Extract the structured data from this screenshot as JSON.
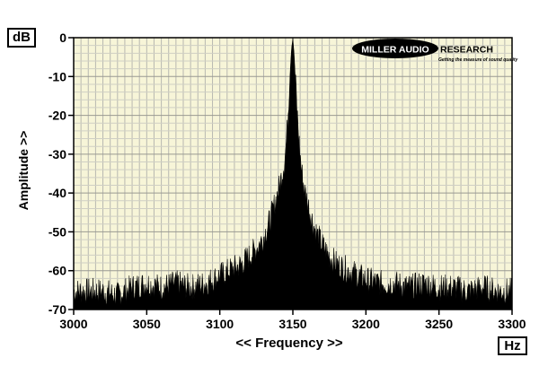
{
  "chart_data": {
    "type": "area",
    "xlabel": "<< Frequency >>",
    "ylabel": "Amplitude >>",
    "y_unit": "dB",
    "x_unit": "Hz",
    "xlim": [
      3000,
      3300
    ],
    "ylim": [
      -70,
      0
    ],
    "x_ticks": [
      3000,
      3050,
      3100,
      3150,
      3200,
      3250,
      3300
    ],
    "y_ticks": [
      0,
      -10,
      -20,
      -30,
      -40,
      -50,
      -60,
      -70
    ],
    "grid": true,
    "series": [
      {
        "x": [
          3000,
          3010,
          3020,
          3030,
          3040,
          3050,
          3060,
          3070,
          3080,
          3090,
          3100,
          3105,
          3110,
          3115,
          3120,
          3125,
          3130,
          3135,
          3138,
          3140,
          3142,
          3144,
          3145,
          3146,
          3147,
          3148,
          3149,
          3150,
          3151,
          3152,
          3153,
          3154,
          3155,
          3156,
          3158,
          3160,
          3162,
          3165,
          3170,
          3175,
          3180,
          3185,
          3190,
          3195,
          3200,
          3210,
          3220,
          3230,
          3240,
          3250,
          3260,
          3270,
          3280,
          3290,
          3300
        ],
        "values": [
          -66,
          -66,
          -66,
          -67,
          -65,
          -64,
          -65,
          -64,
          -65,
          -64,
          -62,
          -61,
          -60,
          -59,
          -57,
          -55,
          -52,
          -47,
          -43,
          -40,
          -37,
          -33,
          -30,
          -25,
          -18,
          -10,
          -3,
          0,
          -5,
          -13,
          -20,
          -26,
          -31,
          -35,
          -40,
          -43,
          -46,
          -50,
          -54,
          -57,
          -59,
          -60,
          -61,
          -62,
          -63,
          -64,
          -64,
          -65,
          -64,
          -65,
          -65,
          -66,
          -65,
          -66,
          -66
        ]
      }
    ],
    "fill_color": "#000000",
    "plot_background": "#f7f5d8"
  },
  "branding": {
    "logo_left": "MILLER AUDIO",
    "logo_right": "RESEARCH",
    "tagline": "Getting the measure of sound quality"
  }
}
